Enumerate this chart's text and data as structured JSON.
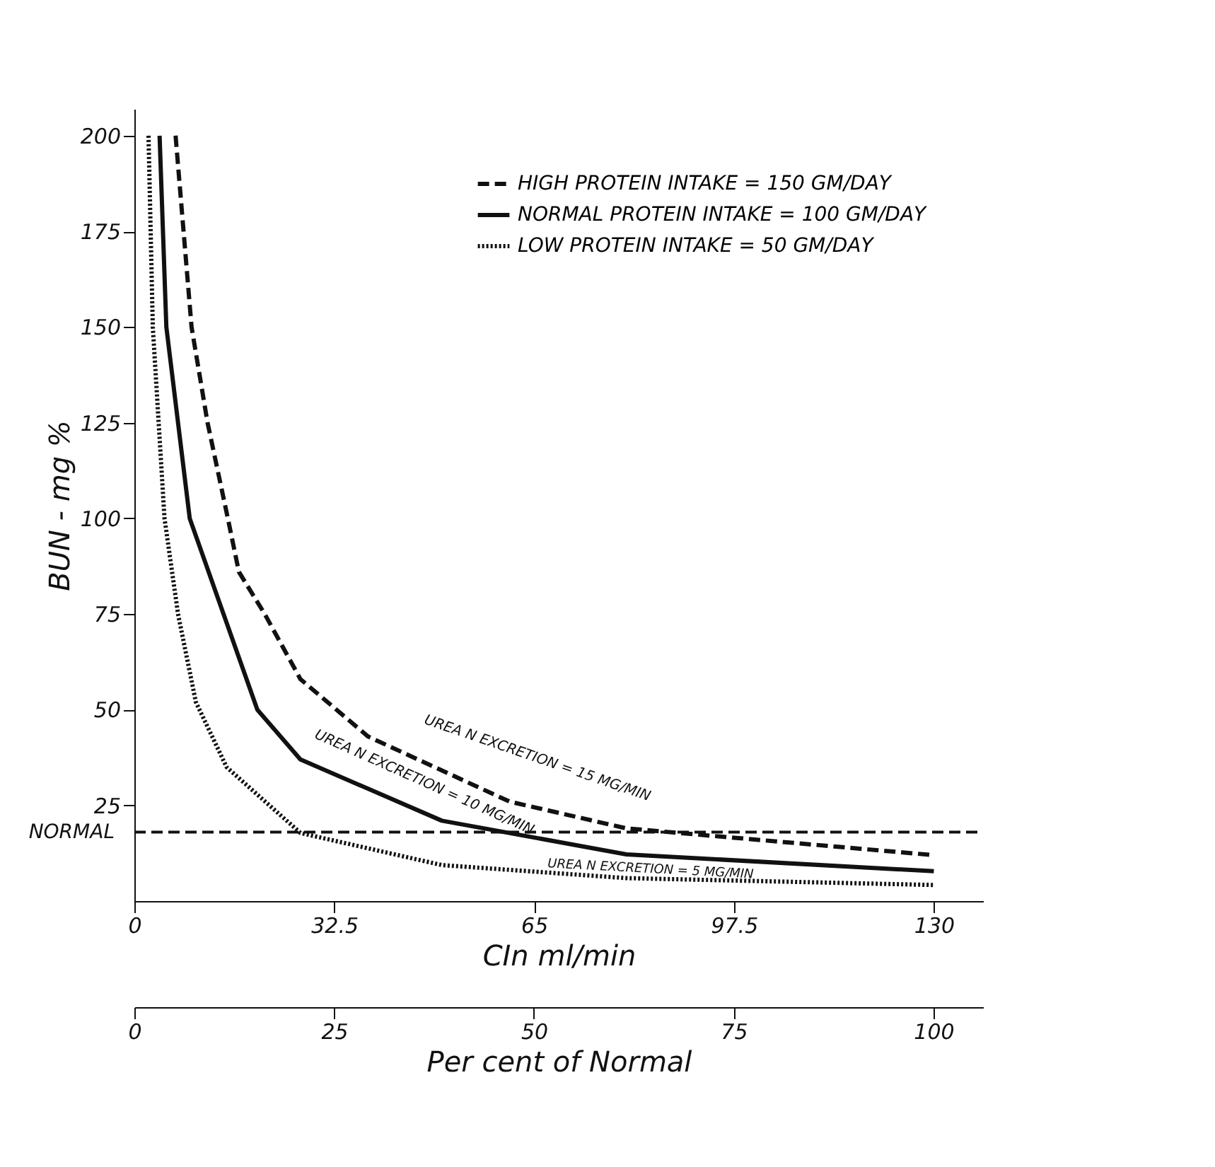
{
  "chart_data": {
    "type": "line",
    "xlabel": "CIn ml/min",
    "ylabel": "BUN - mg %",
    "x2label": "Per cent of Normal",
    "xlim": [
      0,
      138
    ],
    "xticks": [
      0,
      32.5,
      65,
      97.5,
      130
    ],
    "ylim": [
      0,
      207
    ],
    "yticks": [
      25,
      50,
      75,
      100,
      125,
      150,
      175,
      200
    ],
    "x2lim": [
      0,
      106.2
    ],
    "x2ticks": [
      0,
      25,
      50,
      75,
      100
    ],
    "grid": false,
    "legend": "top right",
    "marker": "none",
    "series": [
      {
        "name": "HIGH PROTEIN INTAKE = 150 GM/DAY",
        "color": "#111111",
        "line_style": "dashed",
        "x": [
          6.7,
          9.3,
          11.9,
          15.2,
          17,
          21.2,
          27,
          38,
          61,
          80,
          130
        ],
        "values": [
          200,
          150,
          125,
          100,
          86,
          75,
          58,
          43,
          26,
          19,
          12
        ]
      },
      {
        "name": "NORMAL PROTEIN INTAKE = 100 GM/DAY",
        "color": "#111111",
        "line_style": "solid",
        "x": [
          4.1,
          5.2,
          9,
          14.5,
          20,
          27,
          50,
          80,
          130
        ],
        "values": [
          200,
          150,
          100,
          75,
          50,
          37,
          21,
          12.2,
          7.8
        ]
      },
      {
        "name": "LOW PROTEIN INTAKE = 50 GM/DAY",
        "color": "#111111",
        "line_style": "dotted",
        "x": [
          2.3,
          3,
          4.9,
          7.1,
          10,
          15,
          27,
          50,
          80,
          130
        ],
        "values": [
          200,
          150,
          100,
          75,
          52,
          35,
          17.8,
          9.4,
          6,
          4.2
        ]
      }
    ],
    "ref_lines": [
      {
        "axis": "y",
        "value": 18,
        "label": "NORMAL",
        "line_style": "dashed",
        "color": "#111111"
      }
    ],
    "annotations": [
      "UREA N EXCRETION = 15 MG/MIN",
      "UREA N EXCRETION = 10 MG/MIN",
      "UREA N EXCRETION = 5 MG/MIN"
    ]
  }
}
